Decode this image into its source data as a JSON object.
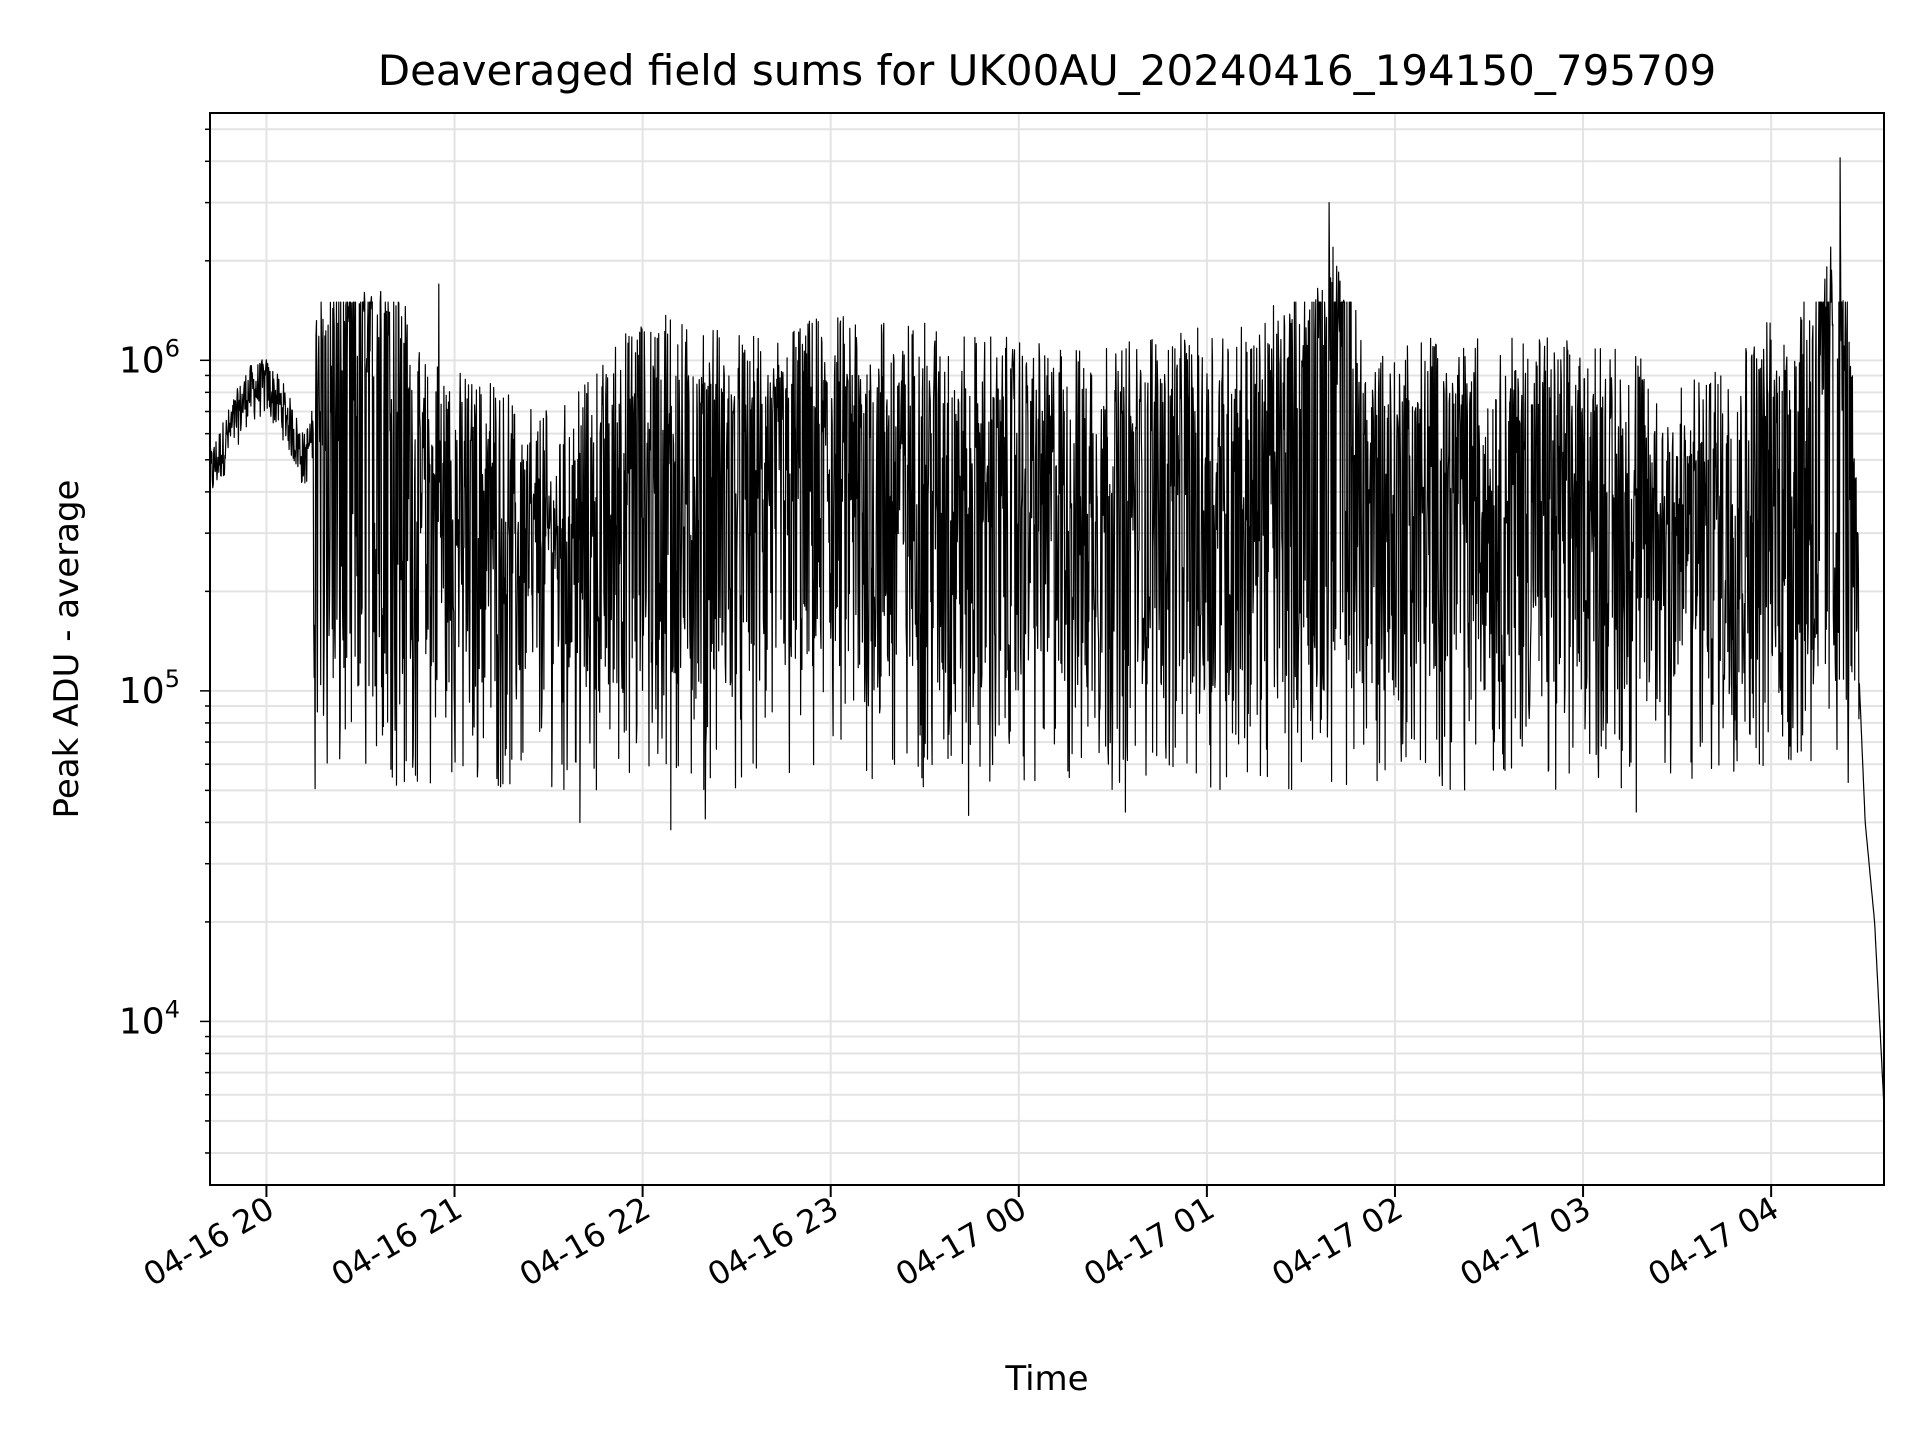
{
  "chart_data": {
    "type": "line",
    "title": "Deaveraged field sums for UK00AU_20240416_194150_795709",
    "xlabel": "Time",
    "ylabel": "Peak ADU - average",
    "yscale": "log",
    "ylim": [
      3200,
      5600000
    ],
    "xlim": [
      "2024-04-16 19:42",
      "2024-04-17 04:36"
    ],
    "grid": true,
    "line_color": "#000000",
    "x_ticks": [
      "04-16 20",
      "04-16 21",
      "04-16 22",
      "04-16 23",
      "04-17 00",
      "04-17 01",
      "04-17 02",
      "04-17 03",
      "04-17 04"
    ],
    "y_ticks": [
      {
        "base": "10",
        "exp": "4",
        "value": 10000
      },
      {
        "base": "10",
        "exp": "5",
        "value": 100000
      },
      {
        "base": "10",
        "exp": "6",
        "value": 1000000
      }
    ],
    "series": [
      {
        "x": [
          "2024-04-16 19:42",
          "2024-04-16 19:48",
          "2024-04-16 19:54",
          "2024-04-16 20:00",
          "2024-04-16 20:06",
          "2024-04-16 20:12",
          "2024-04-16 20:18",
          "2024-04-16 20:24",
          "2024-04-16 20:30",
          "2024-04-16 20:36",
          "2024-04-16 20:42",
          "2024-04-16 20:48",
          "2024-04-16 20:54",
          "2024-04-16 21:00",
          "2024-04-16 21:10",
          "2024-04-16 21:20",
          "2024-04-16 21:30",
          "2024-04-16 21:40",
          "2024-04-16 21:50",
          "2024-04-16 22:00",
          "2024-04-16 22:10",
          "2024-04-16 22:20",
          "2024-04-16 22:30",
          "2024-04-16 22:40",
          "2024-04-16 22:50",
          "2024-04-16 23:00",
          "2024-04-16 23:15",
          "2024-04-16 23:30",
          "2024-04-16 23:45",
          "2024-04-17 00:00",
          "2024-04-17 00:15",
          "2024-04-17 00:30",
          "2024-04-17 00:45",
          "2024-04-17 01:00",
          "2024-04-17 01:15",
          "2024-04-17 01:30",
          "2024-04-17 01:40",
          "2024-04-17 01:50",
          "2024-04-17 02:00",
          "2024-04-17 02:15",
          "2024-04-17 02:30",
          "2024-04-17 02:45",
          "2024-04-17 03:00",
          "2024-04-17 03:15",
          "2024-04-17 03:30",
          "2024-04-17 03:45",
          "2024-04-17 04:00",
          "2024-04-17 04:10",
          "2024-04-17 04:18",
          "2024-04-17 04:24",
          "2024-04-17 04:30",
          "2024-04-17 04:33",
          "2024-04-17 04:36"
        ],
        "y": [
          450000,
          600000,
          800000,
          850000,
          700000,
          500000,
          750000,
          800000,
          900000,
          950000,
          750000,
          400000,
          380000,
          350000,
          330000,
          280000,
          270000,
          300000,
          420000,
          500000,
          520000,
          480000,
          450000,
          430000,
          480000,
          520000,
          500000,
          480000,
          450000,
          430000,
          400000,
          420000,
          450000,
          470000,
          480000,
          650000,
          1300000,
          450000,
          420000,
          450000,
          430000,
          440000,
          420000,
          400000,
          300000,
          380000,
          500000,
          620000,
          1200000,
          900000,
          40000,
          20000,
          5500
        ]
      }
    ],
    "peaks": [
      {
        "x": "2024-04-16 20:55",
        "y": 1700000
      },
      {
        "x": "2024-04-17 01:39",
        "y": 3000000
      },
      {
        "x": "2024-04-17 04:19",
        "y": 2200000
      },
      {
        "x": "2024-04-17 04:22",
        "y": 4100000
      }
    ],
    "troughs": [
      {
        "x": "2024-04-16 21:40",
        "y": 40000
      },
      {
        "x": "2024-04-16 22:09",
        "y": 38000
      },
      {
        "x": "2024-04-16 22:20",
        "y": 41000
      },
      {
        "x": "2024-04-16 23:44",
        "y": 42000
      },
      {
        "x": "2024-04-17 00:34",
        "y": 43000
      },
      {
        "x": "2024-04-17 03:17",
        "y": 43000
      }
    ]
  }
}
